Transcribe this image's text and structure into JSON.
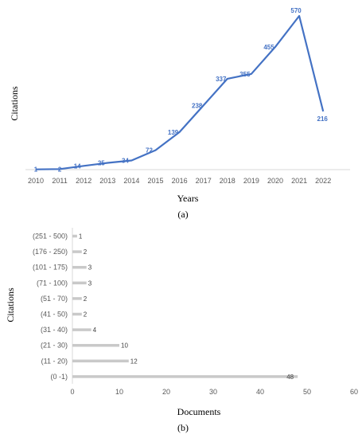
{
  "chart_data": [
    {
      "type": "line",
      "panel_label": "(a)",
      "xlabel": "Years",
      "ylabel": "Citations",
      "x": [
        "2010",
        "2011",
        "2012",
        "2013",
        "2014",
        "2015",
        "2016",
        "2017",
        "2018",
        "2019",
        "2020",
        "2021",
        "2022"
      ],
      "values": [
        1,
        2,
        14,
        25,
        34,
        72,
        139,
        238,
        337,
        355,
        455,
        570,
        216
      ],
      "ylim": [
        0,
        570
      ],
      "grid": false,
      "color": "#4472C4"
    },
    {
      "type": "bar",
      "orientation": "horizontal",
      "panel_label": "(b)",
      "xlabel": "Documents",
      "ylabel": "Citations",
      "categories": [
        "(251 - 500)",
        "(176 - 250)",
        "(101 - 175)",
        "(71 - 100)",
        "(51 - 70)",
        "(41 - 50)",
        "(31 - 40)",
        "(21 - 30)",
        "(11 - 20)",
        "(0 -1)"
      ],
      "values": [
        1,
        2,
        3,
        3,
        2,
        2,
        4,
        10,
        12,
        48
      ],
      "xlim": [
        0,
        60
      ],
      "xticks": [
        "0",
        "10",
        "20",
        "30",
        "40",
        "50",
        "60"
      ],
      "grid": false,
      "color": "#C9C9C9"
    }
  ]
}
